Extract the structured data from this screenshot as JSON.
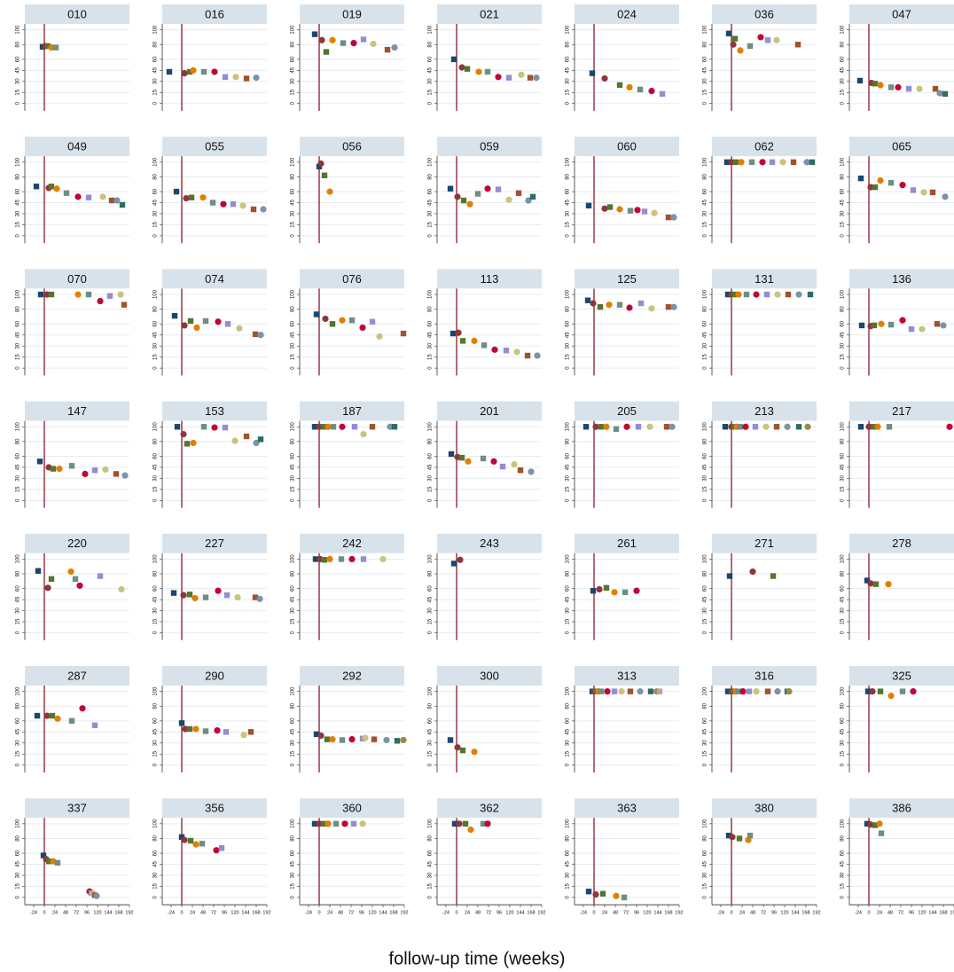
{
  "chart_data": {
    "type": "scatter",
    "xlabel": "follow-up time (weeks)",
    "xlim": [
      -44,
      192
    ],
    "ylim": [
      -10,
      108
    ],
    "xticks": [
      -24,
      0,
      24,
      48,
      72,
      96,
      120,
      144,
      168,
      192
    ],
    "yticks": [
      0,
      15,
      30,
      45,
      60,
      80,
      100
    ],
    "grid": true,
    "xline": 0,
    "xline_color": "#8b1a2b",
    "columns": 7,
    "colors": [
      "#1a476f",
      "#90353b",
      "#55752f",
      "#e37e00",
      "#6e8e84",
      "#c10534",
      "#938dd2",
      "#cac27e",
      "#a0522d",
      "#7b92a8",
      "#2d6d66",
      "#9c8847",
      "#bfa19c"
    ],
    "symbols": [
      "square",
      "circle"
    ],
    "panels": [
      {
        "title": "010",
        "x": [
          -4,
          2,
          8,
          16,
          26
        ],
        "values": [
          77,
          78,
          78,
          76,
          76
        ]
      },
      {
        "title": "016",
        "x": [
          -28,
          6,
          18,
          26,
          50,
          74,
          98,
          122,
          146,
          168
        ],
        "values": [
          43,
          41,
          43,
          45,
          43,
          43,
          36,
          36,
          34,
          35
        ]
      },
      {
        "title": "019",
        "x": [
          -10,
          6,
          16,
          30,
          54,
          78,
          100,
          122,
          154,
          170
        ],
        "values": [
          94,
          86,
          70,
          86,
          82,
          82,
          87,
          81,
          73,
          76
        ]
      },
      {
        "title": "021",
        "x": [
          -6,
          12,
          24,
          50,
          70,
          94,
          118,
          146,
          166,
          180
        ],
        "values": [
          60,
          49,
          47,
          43,
          43,
          36,
          35,
          39,
          35,
          35
        ]
      },
      {
        "title": "024",
        "x": [
          -4,
          24,
          58,
          80,
          104,
          130,
          154
        ],
        "values": [
          41,
          34,
          25,
          22,
          19,
          17,
          13
        ]
      },
      {
        "title": "036",
        "x": [
          -6,
          4,
          8,
          20,
          42,
          66,
          82,
          102,
          150
        ],
        "values": [
          95,
          80,
          88,
          72,
          78,
          90,
          86,
          86,
          80
        ]
      },
      {
        "title": "047",
        "x": [
          -20,
          6,
          14,
          26,
          50,
          66,
          90,
          114,
          150,
          160,
          172
        ],
        "values": [
          31,
          28,
          27,
          25,
          22,
          22,
          20,
          20,
          20,
          14,
          13
        ]
      },
      {
        "title": "049",
        "x": [
          -18,
          10,
          16,
          28,
          50,
          76,
          100,
          132,
          152,
          164,
          176
        ],
        "values": [
          67,
          65,
          67,
          64,
          58,
          53,
          52,
          53,
          48,
          48,
          42
        ]
      },
      {
        "title": "055",
        "x": [
          -12,
          10,
          22,
          48,
          70,
          94,
          116,
          138,
          162,
          184
        ],
        "values": [
          60,
          51,
          52,
          52,
          45,
          43,
          43,
          41,
          36,
          36
        ]
      },
      {
        "title": "056",
        "x": [
          0,
          4,
          12,
          24
        ],
        "values": [
          94,
          98,
          82,
          60
        ]
      },
      {
        "title": "059",
        "x": [
          -14,
          2,
          16,
          30,
          48,
          70,
          94,
          118,
          140,
          162,
          172
        ],
        "values": [
          64,
          53,
          48,
          43,
          57,
          64,
          63,
          49,
          58,
          48,
          53
        ]
      },
      {
        "title": "060",
        "x": [
          -12,
          24,
          36,
          58,
          82,
          98,
          114,
          136,
          168,
          180
        ],
        "values": [
          41,
          37,
          39,
          36,
          34,
          35,
          33,
          31,
          25,
          25
        ]
      },
      {
        "title": "062",
        "x": [
          -10,
          0,
          10,
          22,
          46,
          70,
          92,
          116,
          140,
          170,
          182
        ],
        "values": [
          100,
          100,
          100,
          100,
          100,
          100,
          100,
          100,
          100,
          100,
          100
        ]
      },
      {
        "title": "065",
        "x": [
          -18,
          4,
          14,
          26,
          50,
          76,
          100,
          124,
          144,
          172
        ],
        "values": [
          78,
          66,
          66,
          75,
          72,
          69,
          62,
          59,
          59,
          53
        ]
      },
      {
        "title": "070",
        "x": [
          -8,
          6,
          16,
          76,
          100,
          126,
          148,
          172,
          180
        ],
        "values": [
          100,
          100,
          100,
          100,
          100,
          91,
          98,
          100,
          86
        ]
      },
      {
        "title": "074",
        "x": [
          -16,
          6,
          20,
          34,
          54,
          82,
          104,
          130,
          166,
          178
        ],
        "values": [
          71,
          58,
          64,
          55,
          64,
          63,
          60,
          54,
          46,
          45
        ]
      },
      {
        "title": "076",
        "x": [
          -6,
          14,
          30,
          52,
          74,
          98,
          120,
          136,
          190
        ],
        "values": [
          73,
          67,
          60,
          65,
          65,
          55,
          63,
          43,
          47
        ]
      },
      {
        "title": "113",
        "x": [
          -8,
          4,
          14,
          40,
          62,
          86,
          112,
          136,
          160,
          182
        ],
        "values": [
          47,
          48,
          37,
          37,
          31,
          25,
          24,
          22,
          17,
          17
        ]
      },
      {
        "title": "125",
        "x": [
          -14,
          -2,
          14,
          34,
          58,
          80,
          106,
          130,
          168,
          180
        ],
        "values": [
          92,
          88,
          83,
          86,
          86,
          82,
          88,
          81,
          83,
          83
        ]
      },
      {
        "title": "131",
        "x": [
          -8,
          0,
          6,
          16,
          34,
          56,
          80,
          104,
          128,
          152,
          178
        ],
        "values": [
          100,
          100,
          100,
          100,
          100,
          100,
          100,
          100,
          100,
          100,
          100
        ]
      },
      {
        "title": "136",
        "x": [
          -16,
          4,
          12,
          28,
          50,
          76,
          96,
          120,
          154,
          168
        ],
        "values": [
          58,
          57,
          58,
          60,
          59,
          65,
          53,
          53,
          60,
          58
        ]
      },
      {
        "title": "147",
        "x": [
          -10,
          10,
          20,
          34,
          62,
          92,
          114,
          138,
          162,
          182
        ],
        "values": [
          53,
          45,
          43,
          43,
          47,
          36,
          41,
          42,
          36,
          34
        ]
      },
      {
        "title": "153",
        "x": [
          -10,
          4,
          12,
          26,
          50,
          74,
          98,
          120,
          146,
          168,
          178
        ],
        "values": [
          100,
          90,
          77,
          78,
          100,
          99,
          99,
          81,
          87,
          78,
          83
        ]
      },
      {
        "title": "187",
        "x": [
          -10,
          0,
          10,
          20,
          32,
          52,
          80,
          100,
          120,
          160,
          170
        ],
        "values": [
          100,
          100,
          100,
          100,
          100,
          100,
          100,
          90,
          100,
          100,
          100
        ]
      },
      {
        "title": "201",
        "x": [
          -12,
          2,
          12,
          26,
          60,
          84,
          104,
          130,
          144,
          168
        ],
        "values": [
          63,
          59,
          58,
          53,
          57,
          53,
          46,
          49,
          41,
          39
        ]
      },
      {
        "title": "205",
        "x": [
          -18,
          4,
          16,
          28,
          50,
          74,
          100,
          126,
          164,
          176
        ],
        "values": [
          100,
          100,
          100,
          100,
          97,
          100,
          100,
          100,
          100,
          100
        ]
      },
      {
        "title": "213",
        "x": [
          -14,
          0,
          6,
          12,
          20,
          32,
          54,
          78,
          102,
          126,
          152,
          172
        ],
        "values": [
          100,
          100,
          100,
          100,
          100,
          100,
          100,
          100,
          100,
          100,
          100,
          100
        ]
      },
      {
        "title": "217",
        "x": [
          -18,
          0,
          10,
          20,
          46,
          182
        ],
        "values": [
          100,
          100,
          100,
          100,
          100,
          100
        ]
      },
      {
        "title": "220",
        "x": [
          -14,
          8,
          16,
          60,
          70,
          80,
          126,
          174
        ],
        "values": [
          84,
          61,
          73,
          83,
          73,
          64,
          77,
          59
        ]
      },
      {
        "title": "227",
        "x": [
          -18,
          4,
          18,
          30,
          54,
          82,
          102,
          126,
          166,
          176
        ],
        "values": [
          54,
          51,
          52,
          47,
          48,
          57,
          51,
          48,
          48,
          46
        ]
      },
      {
        "title": "242",
        "x": [
          -8,
          2,
          12,
          24,
          50,
          74,
          100,
          144
        ],
        "values": [
          100,
          100,
          99,
          100,
          100,
          100,
          100,
          100
        ]
      },
      {
        "title": "243",
        "x": [
          -6,
          8
        ],
        "values": [
          94,
          99
        ]
      },
      {
        "title": "261",
        "x": [
          -2,
          12,
          28,
          46,
          70,
          96
        ],
        "values": [
          57,
          59,
          61,
          55,
          55,
          57
        ]
      },
      {
        "title": "271",
        "x": [
          -4,
          48,
          94
        ],
        "values": [
          77,
          83,
          77
        ]
      },
      {
        "title": "278",
        "x": [
          -4,
          4,
          16,
          44
        ],
        "values": [
          71,
          67,
          66,
          66
        ]
      },
      {
        "title": "287",
        "x": [
          -16,
          6,
          18,
          30,
          62,
          86,
          114
        ],
        "values": [
          67,
          67,
          67,
          63,
          60,
          77,
          54
        ]
      },
      {
        "title": "290",
        "x": [
          0,
          8,
          18,
          32,
          54,
          80,
          100,
          140,
          156
        ],
        "values": [
          57,
          49,
          49,
          49,
          46,
          47,
          45,
          41,
          45
        ]
      },
      {
        "title": "292",
        "x": [
          -6,
          4,
          18,
          30,
          52,
          74,
          98,
          104,
          124,
          152,
          176,
          190
        ],
        "values": [
          42,
          40,
          35,
          35,
          34,
          35,
          36,
          37,
          35,
          34,
          33,
          34
        ]
      },
      {
        "title": "300",
        "x": [
          -14,
          2,
          14,
          40
        ],
        "values": [
          34,
          24,
          20,
          18
        ]
      },
      {
        "title": "313",
        "x": [
          -4,
          0,
          4,
          10,
          16,
          30,
          46,
          62,
          82,
          104,
          128,
          142,
          148
        ],
        "values": [
          100,
          100,
          100,
          100,
          100,
          100,
          100,
          100,
          100,
          100,
          100,
          100,
          100
        ]
      },
      {
        "title": "316",
        "x": [
          -8,
          0,
          4,
          10,
          16,
          26,
          40,
          56,
          82,
          104,
          126,
          130
        ],
        "values": [
          100,
          100,
          100,
          100,
          100,
          100,
          100,
          100,
          100,
          100,
          100,
          100
        ]
      },
      {
        "title": "325",
        "x": [
          -2,
          8,
          26,
          50,
          76,
          100
        ],
        "values": [
          100,
          100,
          100,
          94,
          100,
          100
        ]
      },
      {
        "title": "337",
        "x": [
          -2,
          4,
          10,
          20,
          30,
          102,
          106,
          110,
          114,
          118
        ],
        "values": [
          57,
          52,
          49,
          49,
          47,
          8,
          6,
          5,
          3,
          2
        ]
      },
      {
        "title": "356",
        "x": [
          0,
          6,
          20,
          32,
          46,
          78,
          90
        ],
        "values": [
          82,
          78,
          77,
          72,
          73,
          64,
          67
        ]
      },
      {
        "title": "360",
        "x": [
          -10,
          0,
          10,
          20,
          38,
          58,
          78,
          98
        ],
        "values": [
          100,
          100,
          100,
          100,
          100,
          100,
          100,
          100
        ]
      },
      {
        "title": "362",
        "x": [
          -4,
          6,
          20,
          32,
          60,
          70
        ],
        "values": [
          100,
          100,
          100,
          92,
          100,
          100
        ]
      },
      {
        "title": "363",
        "x": [
          -12,
          4,
          20,
          50,
          68
        ],
        "values": [
          8,
          4,
          5,
          2,
          0
        ]
      },
      {
        "title": "380",
        "x": [
          -6,
          2,
          18,
          38,
          42
        ],
        "values": [
          84,
          82,
          80,
          78,
          84
        ]
      },
      {
        "title": "386",
        "x": [
          -4,
          4,
          14,
          24,
          28
        ],
        "values": [
          100,
          99,
          98,
          100,
          87
        ]
      }
    ]
  }
}
